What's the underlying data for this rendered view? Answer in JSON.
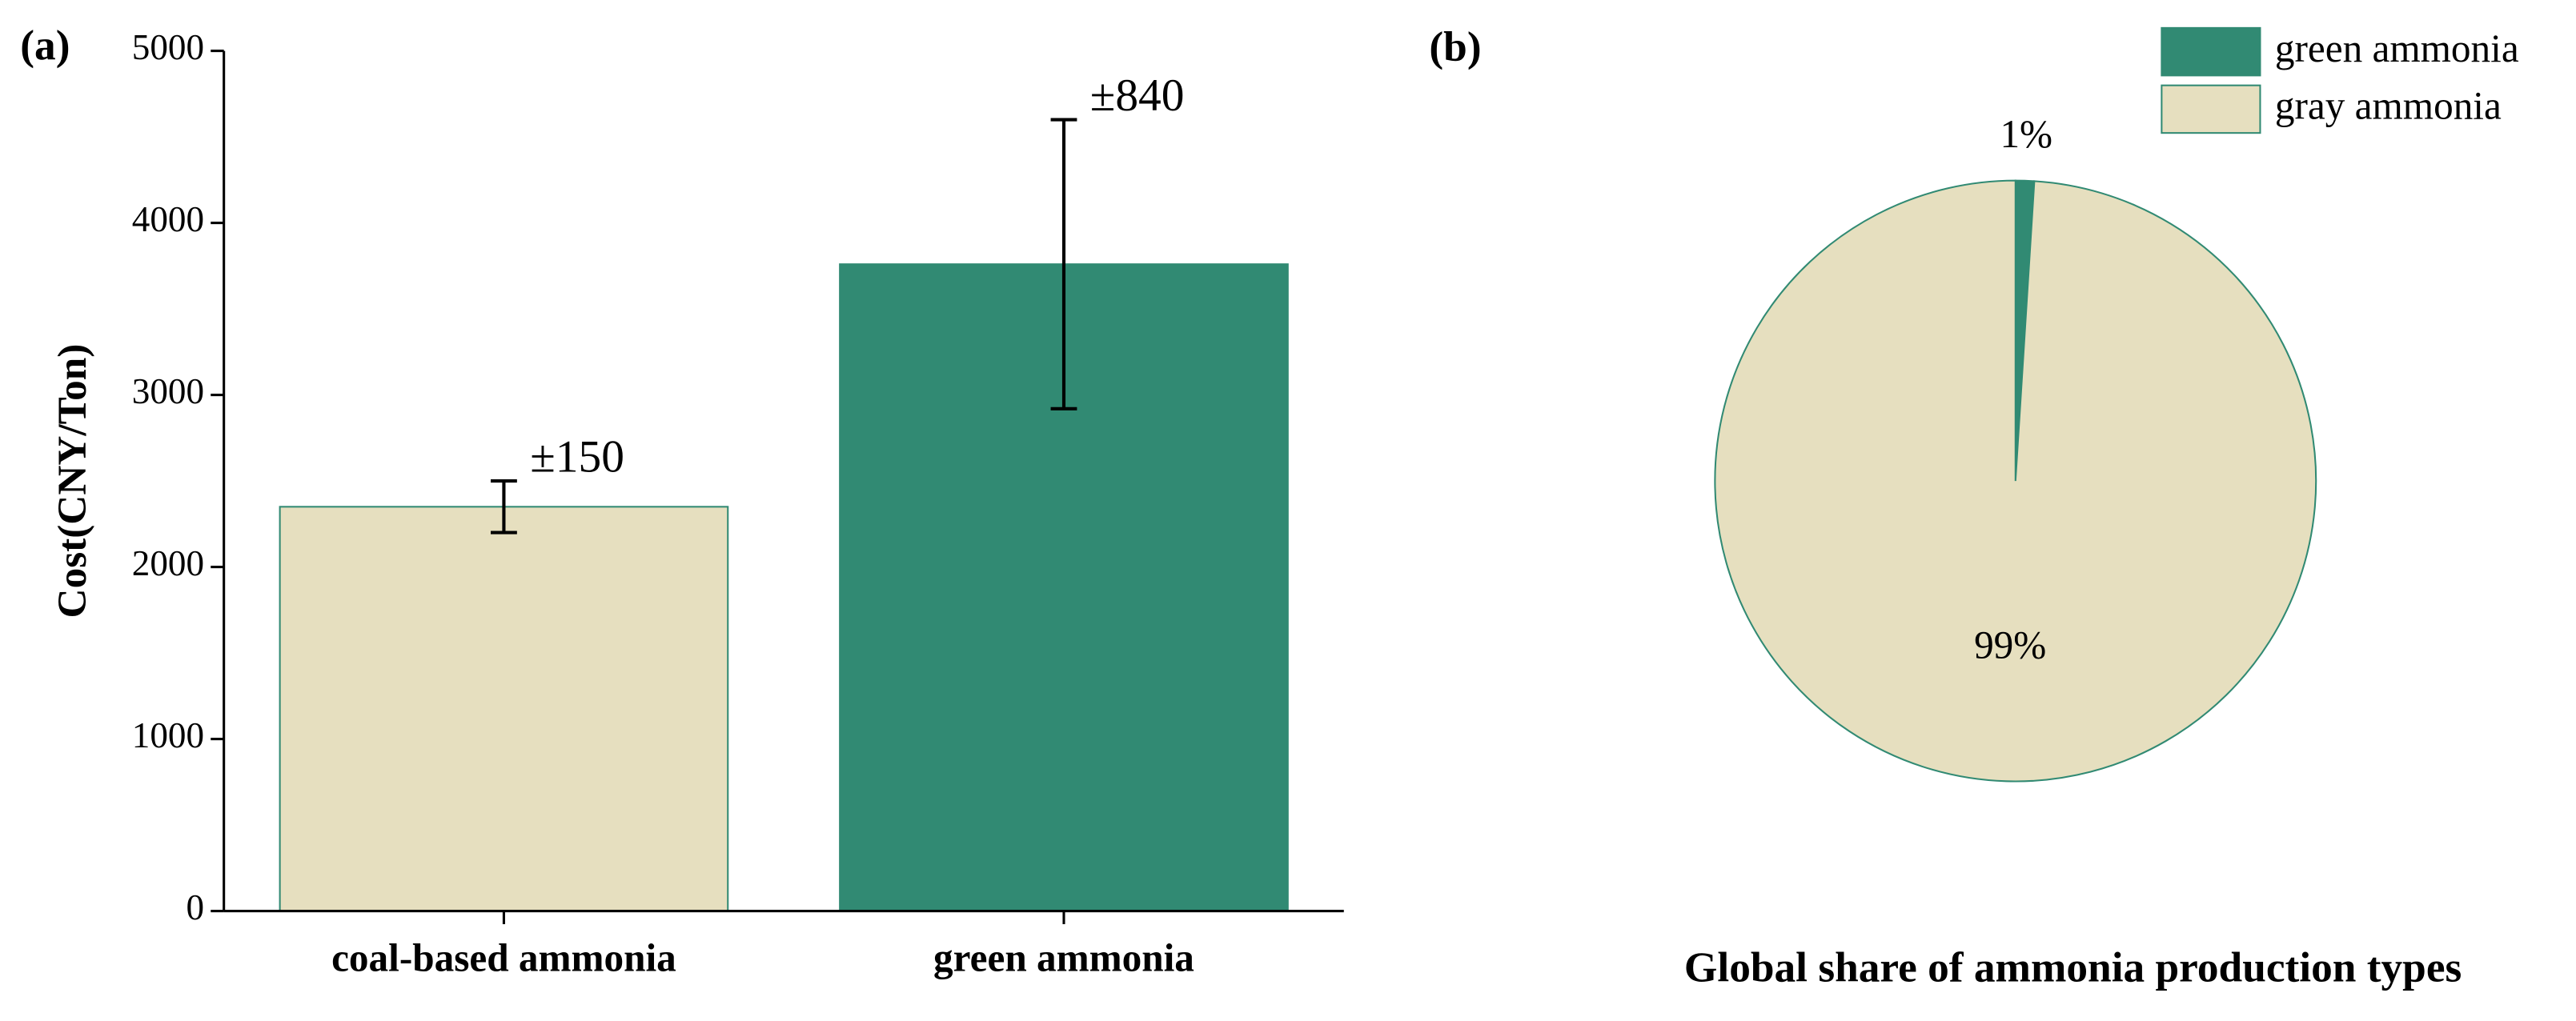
{
  "chart_data": [
    {
      "type": "bar",
      "panel_label": "(a)",
      "y_label": "Cost(CNY/Ton)",
      "categories": [
        "coal-based ammonia",
        "green ammonia"
      ],
      "values": [
        2350,
        3760
      ],
      "errors": [
        150,
        840
      ],
      "error_labels": [
        "±150",
        "±840"
      ],
      "colors": [
        "#e6dfbf",
        "#318a73"
      ],
      "ylim": [
        0,
        5000
      ],
      "yticks": [
        0,
        1000,
        2000,
        3000,
        4000,
        5000
      ]
    },
    {
      "type": "pie",
      "panel_label": "(b)",
      "title": "Global share of ammonia production types",
      "categories": [
        "green ammonia",
        "gray ammonia"
      ],
      "values": [
        1,
        99
      ],
      "value_labels": [
        "1%",
        "99%"
      ],
      "colors": [
        "#318a73",
        "#e6dfbf"
      ],
      "legend": "top-right"
    }
  ]
}
